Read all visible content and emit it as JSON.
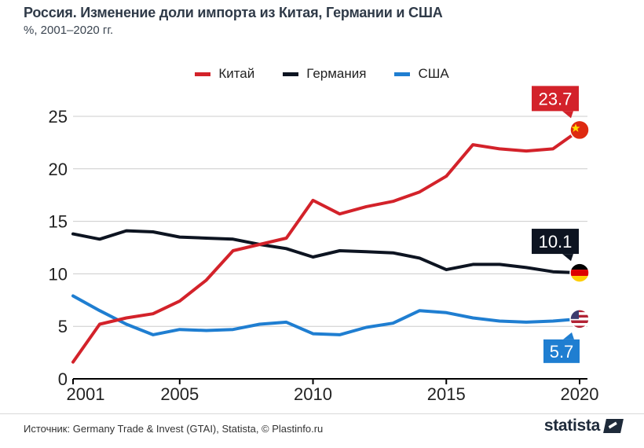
{
  "title": "Россия. Изменение доли импорта из Китая, Германии и США",
  "subtitle": "%, 2001–2020 гг.",
  "source": "Источник: Germany Trade & Invest (GTAI), Statista, © Plastinfo.ru",
  "brand": "statista",
  "colors": {
    "china": "#d3222a",
    "germany": "#0d1421",
    "usa": "#1f7ed1",
    "grid": "#cccccc",
    "axis": "#000000"
  },
  "chart_data": {
    "type": "line",
    "x": [
      2001,
      2002,
      2003,
      2004,
      2005,
      2006,
      2007,
      2008,
      2009,
      2010,
      2011,
      2012,
      2013,
      2014,
      2015,
      2016,
      2017,
      2018,
      2019,
      2020
    ],
    "xticks": [
      "2001",
      "2005",
      "2010",
      "2015",
      "2020"
    ],
    "yticks": [
      "0",
      "5",
      "10",
      "15",
      "20",
      "25"
    ],
    "ylim": [
      0,
      25
    ],
    "grid": true,
    "legend_position": "top-center",
    "series": [
      {
        "key": "china",
        "name": "Китай",
        "values": [
          1.6,
          5.2,
          5.8,
          6.2,
          7.4,
          9.4,
          12.2,
          12.8,
          13.4,
          17.0,
          15.7,
          16.4,
          16.9,
          17.8,
          19.3,
          22.3,
          21.9,
          21.7,
          21.9,
          23.7
        ],
        "end_label": "23.7",
        "flag": "china-flag-icon"
      },
      {
        "key": "germany",
        "name": "Германия",
        "values": [
          13.8,
          13.3,
          14.1,
          14.0,
          13.5,
          13.4,
          13.3,
          12.8,
          12.4,
          11.6,
          12.2,
          12.1,
          12.0,
          11.5,
          10.4,
          10.9,
          10.9,
          10.6,
          10.2,
          10.1
        ],
        "end_label": "10.1",
        "flag": "germany-flag-icon"
      },
      {
        "key": "usa",
        "name": "США",
        "values": [
          7.9,
          6.5,
          5.2,
          4.2,
          4.7,
          4.6,
          4.7,
          5.2,
          5.4,
          4.3,
          4.2,
          4.9,
          5.3,
          6.5,
          6.3,
          5.8,
          5.5,
          5.4,
          5.5,
          5.7
        ],
        "end_label": "5.7",
        "flag": "usa-flag-icon"
      }
    ]
  }
}
